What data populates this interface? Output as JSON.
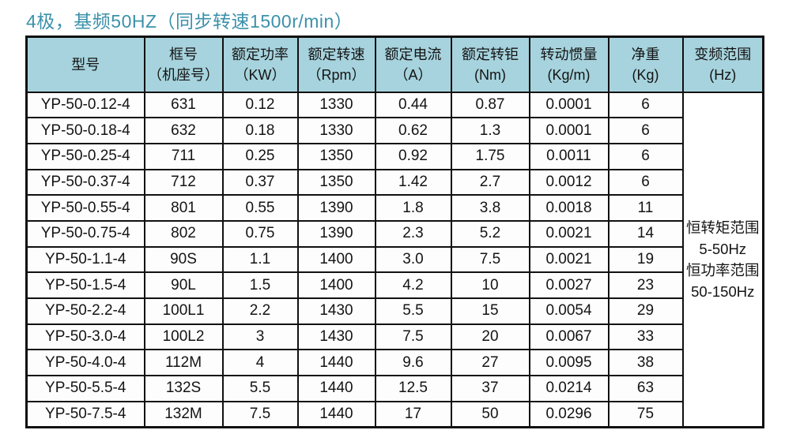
{
  "title": "4极，基频50HZ（同步转速1500r/min）",
  "colors": {
    "title_text": "#3b91aa",
    "header_bg": "#a6d3dd",
    "border": "#111111",
    "cell_bg": "#fdfdfd"
  },
  "table": {
    "columns": [
      {
        "line1": "型号",
        "line2": ""
      },
      {
        "line1": "框号",
        "line2": "（机座号）"
      },
      {
        "line1": "额定功率",
        "line2": "（KW）"
      },
      {
        "line1": "额定转速",
        "line2": "（Rpm）"
      },
      {
        "line1": "额定电流",
        "line2": "（A）"
      },
      {
        "line1": "额定转钜",
        "line2": "(Nm)"
      },
      {
        "line1": "转动惯量",
        "line2": "(Kg/m)"
      },
      {
        "line1": "净重",
        "line2": "(Kg)"
      },
      {
        "line1": "变频范围",
        "line2": "(Hz)"
      }
    ],
    "rows": [
      [
        "YP-50-0.12-4",
        "631",
        "0.12",
        "1330",
        "0.44",
        "0.87",
        "0.0001",
        "6"
      ],
      [
        "YP-50-0.18-4",
        "632",
        "0.18",
        "1330",
        "0.62",
        "1.3",
        "0.0001",
        "6"
      ],
      [
        "YP-50-0.25-4",
        "711",
        "0.25",
        "1350",
        "0.92",
        "1.75",
        "0.0011",
        "6"
      ],
      [
        "YP-50-0.37-4",
        "712",
        "0.37",
        "1350",
        "1.42",
        "2.7",
        "0.0012",
        "6"
      ],
      [
        "YP-50-0.55-4",
        "801",
        "0.55",
        "1390",
        "1.8",
        "3.8",
        "0.0018",
        "11"
      ],
      [
        "YP-50-0.75-4",
        "802",
        "0.75",
        "1390",
        "2.3",
        "5.2",
        "0.0021",
        "14"
      ],
      [
        "YP-50-1.1-4",
        "90S",
        "1.1",
        "1400",
        "3.0",
        "7.5",
        "0.0021",
        "19"
      ],
      [
        "YP-50-1.5-4",
        "90L",
        "1.5",
        "1400",
        "4.2",
        "10",
        "0.0027",
        "23"
      ],
      [
        "YP-50-2.2-4",
        "100L1",
        "2.2",
        "1430",
        "5.5",
        "15",
        "0.0054",
        "29"
      ],
      [
        "YP-50-3.0-4",
        "100L2",
        "3",
        "1430",
        "7.5",
        "20",
        "0.0067",
        "33"
      ],
      [
        "YP-50-4.0-4",
        "112M",
        "4",
        "1440",
        "9.6",
        "27",
        "0.0095",
        "38"
      ],
      [
        "YP-50-5.5-4",
        "132S",
        "5.5",
        "1440",
        "12.5",
        "37",
        "0.0214",
        "63"
      ],
      [
        "YP-50-7.5-4",
        "132M",
        "7.5",
        "1440",
        "17",
        "50",
        "0.0296",
        "75"
      ]
    ],
    "frequency_range_lines": [
      "恒转矩范围",
      "5-50Hz",
      "恒功率范围",
      "50-150Hz"
    ]
  }
}
